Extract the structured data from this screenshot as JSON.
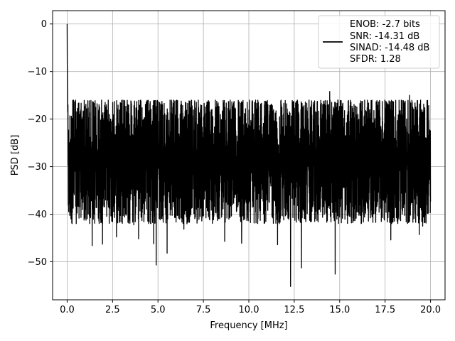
{
  "chart_data": {
    "type": "line",
    "title": "",
    "xlabel": "Frequency [MHz]",
    "ylabel": "PSD [dB]",
    "xlim": [
      -0.8,
      20.8
    ],
    "ylim": [
      -58,
      2.8
    ],
    "xticks": [
      0.0,
      2.5,
      5.0,
      7.5,
      10.0,
      12.5,
      15.0,
      17.5,
      20.0
    ],
    "xtick_labels": [
      "0.0",
      "2.5",
      "5.0",
      "7.5",
      "10.0",
      "12.5",
      "15.0",
      "17.5",
      "20.0"
    ],
    "yticks": [
      0,
      -10,
      -20,
      -30,
      -40,
      -50
    ],
    "ytick_labels": [
      "0",
      "−10",
      "−20",
      "−30",
      "−40",
      "−50"
    ],
    "grid": true,
    "legend_position": "top-right",
    "legend": [
      "ENOB: -2.7 bits",
      "SNR: -14.31 dB",
      "SINAD: -14.48 dB",
      "SFDR: 1.28"
    ],
    "series": [
      {
        "color": "#000000",
        "peak": {
          "x": 0.0,
          "y": 0.0
        },
        "noise_floor_mean_db": -27,
        "noise_upper_envelope_db": -16,
        "noise_lower_envelope_db": -42,
        "x_range": [
          0.0,
          20.0
        ],
        "notable_minima": [
          {
            "x": 1.95,
            "y": -46.3
          },
          {
            "x": 4.9,
            "y": -50.7
          },
          {
            "x": 5.5,
            "y": -48.2
          },
          {
            "x": 9.6,
            "y": -46.1
          },
          {
            "x": 12.3,
            "y": -55.2
          },
          {
            "x": 12.9,
            "y": -51.3
          },
          {
            "x": 14.75,
            "y": -52.6
          }
        ],
        "notable_maxima": [
          {
            "x": 14.45,
            "y": -14.2
          },
          {
            "x": 18.85,
            "y": -15.0
          }
        ]
      }
    ]
  }
}
